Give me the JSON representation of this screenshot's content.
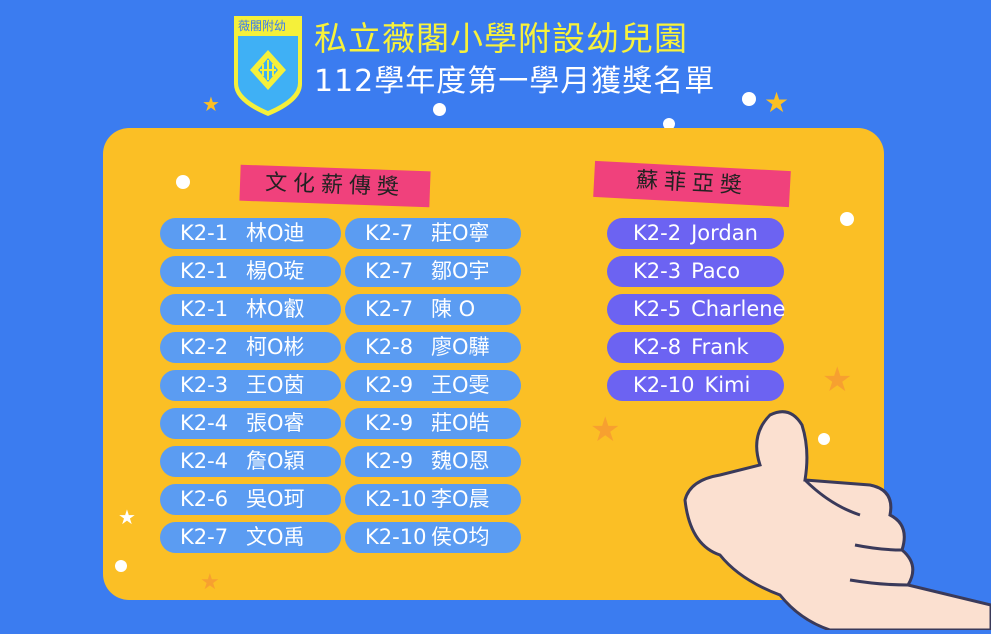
{
  "header": {
    "logo_text": "薇閣附幼",
    "title": "私立薇閣小學附設幼兒園",
    "subtitle": "112學年度第一學月獲獎名單"
  },
  "awards": [
    {
      "name": "文化薪傳獎",
      "winners": [
        {
          "class": "K2-1",
          "name": "林O迪"
        },
        {
          "class": "K2-1",
          "name": "楊O琁"
        },
        {
          "class": "K2-1",
          "name": "林O叡"
        },
        {
          "class": "K2-2",
          "name": "柯O彬"
        },
        {
          "class": "K2-3",
          "name": "王O茵"
        },
        {
          "class": "K2-4",
          "name": "張O睿"
        },
        {
          "class": "K2-4",
          "name": "詹O穎"
        },
        {
          "class": "K2-6",
          "name": "吳O珂"
        },
        {
          "class": "K2-7",
          "name": "文O禹"
        },
        {
          "class": "K2-7",
          "name": "莊O寧"
        },
        {
          "class": "K2-7",
          "name": "鄒O宇"
        },
        {
          "class": "K2-7",
          "name": "陳 O"
        },
        {
          "class": "K2-8",
          "name": "廖O驊"
        },
        {
          "class": "K2-9",
          "name": "王O雯"
        },
        {
          "class": "K2-9",
          "name": "莊O皓"
        },
        {
          "class": "K2-9",
          "name": "魏O恩"
        },
        {
          "class": "K2-10",
          "name": "李O晨"
        },
        {
          "class": "K2-10",
          "name": "侯O均"
        }
      ]
    },
    {
      "name": "蘇菲亞獎",
      "winners": [
        {
          "class": "K2-2",
          "name": "Jordan"
        },
        {
          "class": "K2-3",
          "name": "Paco"
        },
        {
          "class": "K2-5",
          "name": "Charlene"
        },
        {
          "class": "K2-8",
          "name": "Frank"
        },
        {
          "class": "K2-10",
          "name": "Kimi"
        }
      ]
    }
  ],
  "colors": {
    "background": "#3b7cf0",
    "panel": "#fbbf25",
    "pill_blue": "#5b9cf2",
    "pill_purple": "#6c63f2",
    "ribbon": "#f0417c",
    "title_yellow": "#f8f23a"
  }
}
